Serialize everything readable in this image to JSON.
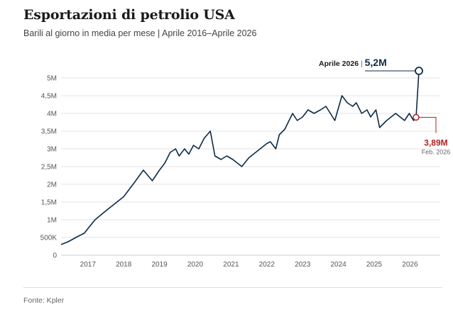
{
  "header": {
    "title": "Esportazioni di petrolio USA",
    "subtitle": "Barili al giorno in media per mese | Aprile 2016–Aprile 2026"
  },
  "footer": {
    "source": "Fonte: Kpler"
  },
  "colors": {
    "line": "#0d2b45",
    "highlight": "#b22222",
    "grid": "#e3e3e3"
  },
  "chart_data": {
    "type": "line",
    "title": "Esportazioni di petrolio USA",
    "subtitle": "Barili al giorno in media per mese | Aprile 2016–Aprile 2026",
    "xlabel": "",
    "ylabel": "",
    "xlim": [
      2016.25,
      2026.25
    ],
    "ylim": [
      0,
      5000000
    ],
    "grid": true,
    "legend": "none",
    "x_ticks": [
      2017,
      2018,
      2019,
      2020,
      2021,
      2022,
      2023,
      2024,
      2025,
      2026
    ],
    "x_tick_labels": [
      "2017",
      "2018",
      "2019",
      "2020",
      "2021",
      "2022",
      "2023",
      "2024",
      "2025",
      "2026"
    ],
    "y_ticks": [
      0,
      500000,
      1000000,
      1500000,
      2000000,
      2500000,
      3000000,
      3500000,
      4000000,
      4500000,
      5000000
    ],
    "y_tick_labels": [
      "0",
      "500K",
      "1M",
      "1,5M",
      "2M",
      "2,5M",
      "3M",
      "3,5M",
      "4M",
      "4,5M",
      "5M"
    ],
    "series": [
      {
        "values": [
          [
            2016.25,
            300000
          ],
          [
            2016.45,
            380000
          ],
          [
            2016.7,
            520000
          ],
          [
            2016.9,
            620000
          ],
          [
            2017.0,
            750000
          ],
          [
            2017.2,
            1000000
          ],
          [
            2017.5,
            1250000
          ],
          [
            2017.75,
            1450000
          ],
          [
            2018.0,
            1650000
          ],
          [
            2018.3,
            2050000
          ],
          [
            2018.55,
            2400000
          ],
          [
            2018.8,
            2100000
          ],
          [
            2019.0,
            2400000
          ],
          [
            2019.15,
            2600000
          ],
          [
            2019.3,
            2900000
          ],
          [
            2019.45,
            3000000
          ],
          [
            2019.55,
            2800000
          ],
          [
            2019.7,
            3000000
          ],
          [
            2019.82,
            2850000
          ],
          [
            2019.95,
            3100000
          ],
          [
            2020.1,
            3000000
          ],
          [
            2020.25,
            3300000
          ],
          [
            2020.42,
            3500000
          ],
          [
            2020.55,
            2800000
          ],
          [
            2020.72,
            2700000
          ],
          [
            2020.88,
            2800000
          ],
          [
            2021.05,
            2700000
          ],
          [
            2021.3,
            2500000
          ],
          [
            2021.5,
            2750000
          ],
          [
            2021.75,
            2950000
          ],
          [
            2022.0,
            3150000
          ],
          [
            2022.1,
            3200000
          ],
          [
            2022.25,
            3000000
          ],
          [
            2022.35,
            3400000
          ],
          [
            2022.5,
            3550000
          ],
          [
            2022.72,
            4000000
          ],
          [
            2022.85,
            3800000
          ],
          [
            2023.0,
            3900000
          ],
          [
            2023.15,
            4100000
          ],
          [
            2023.32,
            4000000
          ],
          [
            2023.5,
            4100000
          ],
          [
            2023.65,
            4200000
          ],
          [
            2023.9,
            3800000
          ],
          [
            2024.1,
            4500000
          ],
          [
            2024.25,
            4300000
          ],
          [
            2024.4,
            4200000
          ],
          [
            2024.5,
            4300000
          ],
          [
            2024.65,
            4000000
          ],
          [
            2024.8,
            4100000
          ],
          [
            2024.9,
            3900000
          ],
          [
            2025.05,
            4100000
          ],
          [
            2025.15,
            3600000
          ],
          [
            2025.35,
            3800000
          ],
          [
            2025.6,
            4000000
          ],
          [
            2025.85,
            3800000
          ],
          [
            2025.98,
            4000000
          ],
          [
            2026.1,
            3800000
          ],
          [
            2026.17,
            3890000
          ],
          [
            2026.25,
            5200000
          ]
        ]
      }
    ],
    "annotations": [
      {
        "label": "Feb. 2026",
        "value_label": "3,89M",
        "x": 2026.17,
        "y": 3890000,
        "style": "highlight"
      },
      {
        "label": "Aprile 2026",
        "separator": "|",
        "value_label": "5,2M",
        "x": 2026.25,
        "y": 5200000,
        "style": "end"
      }
    ]
  }
}
